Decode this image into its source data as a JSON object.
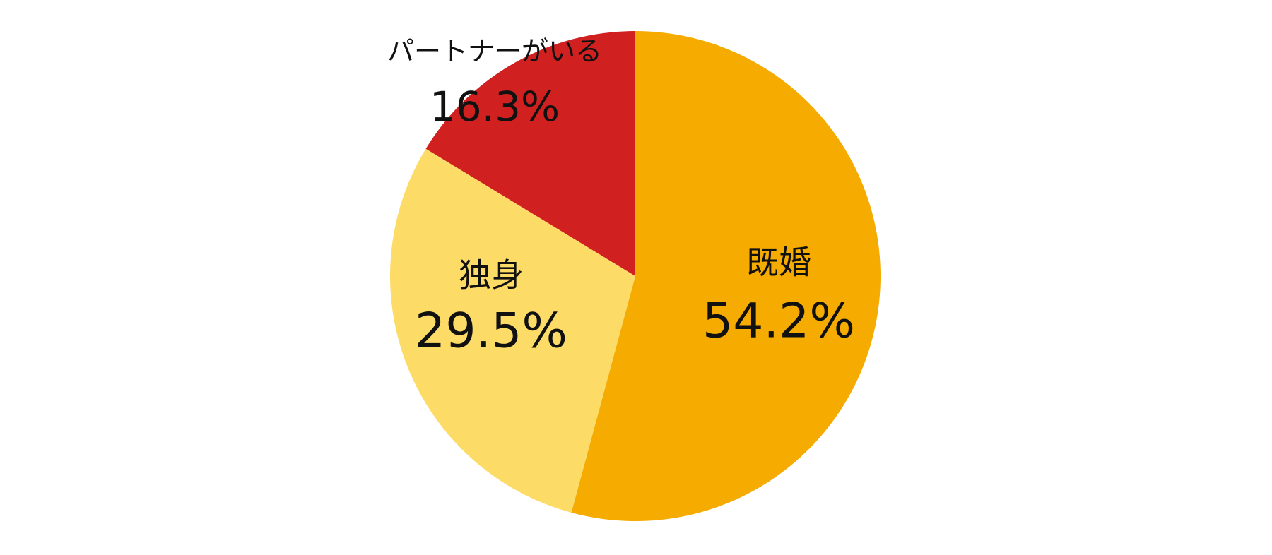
{
  "chart_data": {
    "type": "pie",
    "categories": [
      "既婚",
      "独身",
      "パートナーがいる"
    ],
    "values": [
      54.2,
      29.5,
      16.3
    ],
    "value_labels": [
      "54.2%",
      "29.5%",
      "16.3%"
    ],
    "colors": [
      "#F5AB00",
      "#FCDB67",
      "#D02020"
    ]
  }
}
